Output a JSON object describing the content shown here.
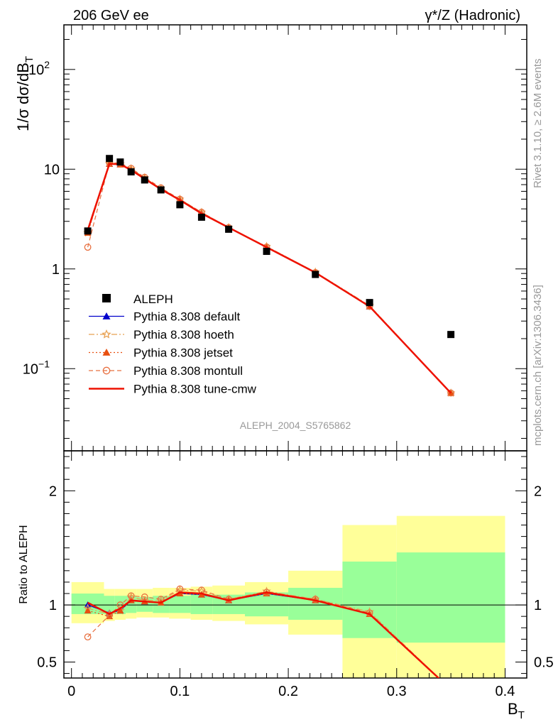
{
  "header": {
    "left": "206 GeV ee",
    "right": "γ*/Z (Hadronic)"
  },
  "side_labels": {
    "top": "Rivet 3.1.10, ≥ 2.6M events",
    "bottom": "mcplots.cern.ch [arXiv:1306.3436]"
  },
  "watermark": "ALEPH_2004_S5765862",
  "axes": {
    "ylabel_main": "1/σ  dσ/dB_T",
    "ylabel_ratio": "Ratio to ALEPH",
    "xlabel": "B_T",
    "x_ticks": [
      {
        "v": 0,
        "label": "0"
      },
      {
        "v": 0.1,
        "label": "0.1"
      },
      {
        "v": 0.2,
        "label": "0.2"
      },
      {
        "v": 0.3,
        "label": "0.3"
      },
      {
        "v": 0.4,
        "label": "0.4"
      }
    ],
    "main_y_ticks": [
      {
        "v": 0.1,
        "base": "10",
        "exp": "−1"
      },
      {
        "v": 1,
        "base": "1",
        "exp": ""
      },
      {
        "v": 10,
        "base": "10",
        "exp": ""
      },
      {
        "v": 100,
        "base": "10",
        "exp": "2"
      }
    ],
    "ratio_y_ticks": [
      {
        "v": 0.5,
        "label": "0.5"
      },
      {
        "v": 1,
        "label": "1"
      },
      {
        "v": 2,
        "label": "2"
      }
    ]
  },
  "chart_data": {
    "type": "scatter",
    "x_range": [
      -0.007,
      0.42
    ],
    "main": {
      "y_scale": "log",
      "ylim": [
        0.015,
        280
      ],
      "data": {
        "name": "ALEPH",
        "x": [
          0.015,
          0.035,
          0.045,
          0.055,
          0.0675,
          0.0825,
          0.1,
          0.12,
          0.145,
          0.18,
          0.225,
          0.275,
          0.35
        ],
        "y": [
          2.4,
          12.8,
          11.8,
          9.4,
          7.8,
          6.2,
          4.4,
          3.3,
          2.5,
          1.5,
          0.88,
          0.46,
          0.22
        ]
      },
      "series": [
        {
          "name": "Pythia 8.308 default",
          "color": "#0000cc",
          "marker": "triangle",
          "line": "solid",
          "y": [
            2.4,
            11.3,
            11.2,
            9.8,
            8.0,
            6.3,
            4.9,
            3.6,
            2.6,
            1.65,
            0.92,
            0.42,
            0.057
          ]
        },
        {
          "name": "Pythia 8.308 hoeth",
          "color": "#e8a050",
          "marker": "star",
          "line": "dashdot",
          "y": [
            2.3,
            11.4,
            11.3,
            10.1,
            8.2,
            6.4,
            5.0,
            3.7,
            2.6,
            1.68,
            0.93,
            0.43,
            0.057
          ]
        },
        {
          "name": "Pythia 8.308 jetset",
          "color": "#e85010",
          "marker": "triangle",
          "line": "dotted",
          "y": [
            2.3,
            11.3,
            11.1,
            9.8,
            8.0,
            6.3,
            4.9,
            3.6,
            2.6,
            1.65,
            0.92,
            0.42,
            0.057
          ]
        },
        {
          "name": "Pythia 8.308 montull",
          "color": "#e87040",
          "marker": "circle",
          "line": "dashed",
          "y": [
            1.65,
            11.6,
            11.5,
            10.2,
            8.3,
            6.5,
            5.0,
            3.7,
            2.6,
            1.66,
            0.92,
            0.42,
            0.057
          ]
        },
        {
          "name": "Pythia 8.308 tune-cmw",
          "color": "#ee1100",
          "marker": "none",
          "line": "solid",
          "y": [
            2.45,
            11.3,
            11.2,
            9.8,
            8.0,
            6.3,
            4.9,
            3.6,
            2.6,
            1.65,
            0.92,
            0.42,
            0.057
          ]
        }
      ]
    },
    "ratio": {
      "ylim": [
        0.36,
        2.35
      ],
      "reference": 1,
      "bands": [
        {
          "x0": 0.0,
          "x1": 0.03,
          "y0": 0.84,
          "y1": 1.2,
          "g0": 0.92,
          "g1": 1.1
        },
        {
          "x0": 0.03,
          "x1": 0.04,
          "y0": 0.86,
          "y1": 1.14,
          "g0": 0.92,
          "g1": 1.08
        },
        {
          "x0": 0.04,
          "x1": 0.05,
          "y0": 0.87,
          "y1": 1.14,
          "g0": 0.92,
          "g1": 1.08
        },
        {
          "x0": 0.05,
          "x1": 0.06,
          "y0": 0.88,
          "y1": 1.14,
          "g0": 0.93,
          "g1": 1.08
        },
        {
          "x0": 0.06,
          "x1": 0.075,
          "y0": 0.89,
          "y1": 1.14,
          "g0": 0.94,
          "g1": 1.07
        },
        {
          "x0": 0.075,
          "x1": 0.09,
          "y0": 0.89,
          "y1": 1.15,
          "g0": 0.93,
          "g1": 1.08
        },
        {
          "x0": 0.09,
          "x1": 0.11,
          "y0": 0.88,
          "y1": 1.15,
          "g0": 0.93,
          "g1": 1.08
        },
        {
          "x0": 0.11,
          "x1": 0.13,
          "y0": 0.87,
          "y1": 1.16,
          "g0": 0.92,
          "g1": 1.09
        },
        {
          "x0": 0.13,
          "x1": 0.16,
          "y0": 0.86,
          "y1": 1.17,
          "g0": 0.92,
          "g1": 1.09
        },
        {
          "x0": 0.16,
          "x1": 0.2,
          "y0": 0.83,
          "y1": 1.2,
          "g0": 0.9,
          "g1": 1.11
        },
        {
          "x0": 0.2,
          "x1": 0.25,
          "y0": 0.74,
          "y1": 1.3,
          "g0": 0.87,
          "g1": 1.15
        },
        {
          "x0": 0.25,
          "x1": 0.3,
          "y0": 0.33,
          "y1": 1.7,
          "g0": 0.71,
          "g1": 1.38
        },
        {
          "x0": 0.3,
          "x1": 0.4,
          "y0": 0.33,
          "y1": 1.78,
          "g0": 0.67,
          "g1": 1.46
        }
      ],
      "series": [
        {
          "name": "Pythia 8.308 default",
          "y": [
            1.0,
            0.93,
            0.95,
            1.04,
            1.03,
            1.02,
            1.1,
            1.09,
            1.04,
            1.1,
            1.04,
            0.92,
            0.26
          ]
        },
        {
          "name": "Pythia 8.308 hoeth",
          "y": [
            0.97,
            0.92,
            0.95,
            1.07,
            1.04,
            1.04,
            1.13,
            1.12,
            1.05,
            1.12,
            1.05,
            0.94,
            0.26
          ]
        },
        {
          "name": "Pythia 8.308 jetset",
          "y": [
            0.95,
            0.9,
            0.95,
            1.04,
            1.03,
            1.02,
            1.1,
            1.09,
            1.04,
            1.1,
            1.04,
            0.92,
            0.26
          ]
        },
        {
          "name": "Pythia 8.308 montull",
          "y": [
            0.72,
            0.91,
            1.0,
            1.08,
            1.07,
            1.05,
            1.14,
            1.13,
            1.05,
            1.11,
            1.05,
            0.93,
            0.26
          ]
        },
        {
          "name": "Pythia 8.308 tune-cmw",
          "y": [
            1.02,
            0.92,
            0.97,
            1.04,
            1.03,
            1.02,
            1.11,
            1.1,
            1.04,
            1.11,
            1.04,
            0.92,
            0.26
          ]
        }
      ]
    },
    "legend_position": "lower-left"
  }
}
